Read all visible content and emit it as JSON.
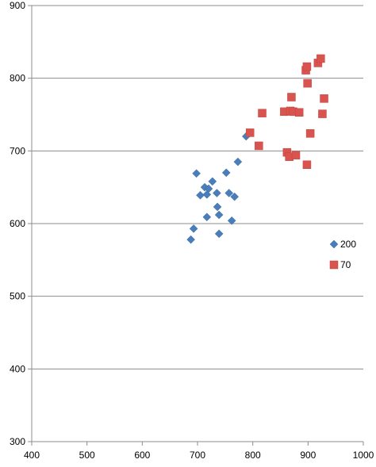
{
  "chart_data": {
    "type": "scatter",
    "title": "",
    "xlabel": "",
    "ylabel": "",
    "xlim": [
      400,
      1000
    ],
    "ylim": [
      300,
      900
    ],
    "xticks": [
      400,
      500,
      600,
      700,
      800,
      900,
      1000
    ],
    "yticks": [
      300,
      400,
      500,
      600,
      700,
      800,
      900
    ],
    "grid": "horizontal",
    "legend_position": "right",
    "series": [
      {
        "name": "200",
        "marker": "diamond",
        "color": "#4a7ebb",
        "points": [
          [
            698,
            669
          ],
          [
            705,
            639
          ],
          [
            713,
            650
          ],
          [
            717,
            640
          ],
          [
            720,
            648
          ],
          [
            727,
            658
          ],
          [
            735,
            642
          ],
          [
            736,
            623
          ],
          [
            739,
            612
          ],
          [
            717,
            609
          ],
          [
            693,
            593
          ],
          [
            688,
            578
          ],
          [
            739,
            586
          ],
          [
            752,
            670
          ],
          [
            757,
            642
          ],
          [
            762,
            604
          ],
          [
            767,
            637
          ],
          [
            773,
            685
          ],
          [
            788,
            720
          ]
        ]
      },
      {
        "name": "70",
        "marker": "square",
        "color": "#d9534f",
        "points": [
          [
            795,
            725
          ],
          [
            811,
            707
          ],
          [
            817,
            752
          ],
          [
            857,
            754
          ],
          [
            862,
            698
          ],
          [
            866,
            692
          ],
          [
            868,
            755
          ],
          [
            870,
            774
          ],
          [
            873,
            754
          ],
          [
            878,
            694
          ],
          [
            884,
            753
          ],
          [
            896,
            811
          ],
          [
            898,
            816
          ],
          [
            899,
            793
          ],
          [
            898,
            681
          ],
          [
            904,
            724
          ],
          [
            918,
            821
          ],
          [
            923,
            827
          ],
          [
            926,
            751
          ],
          [
            929,
            772
          ]
        ]
      }
    ]
  }
}
